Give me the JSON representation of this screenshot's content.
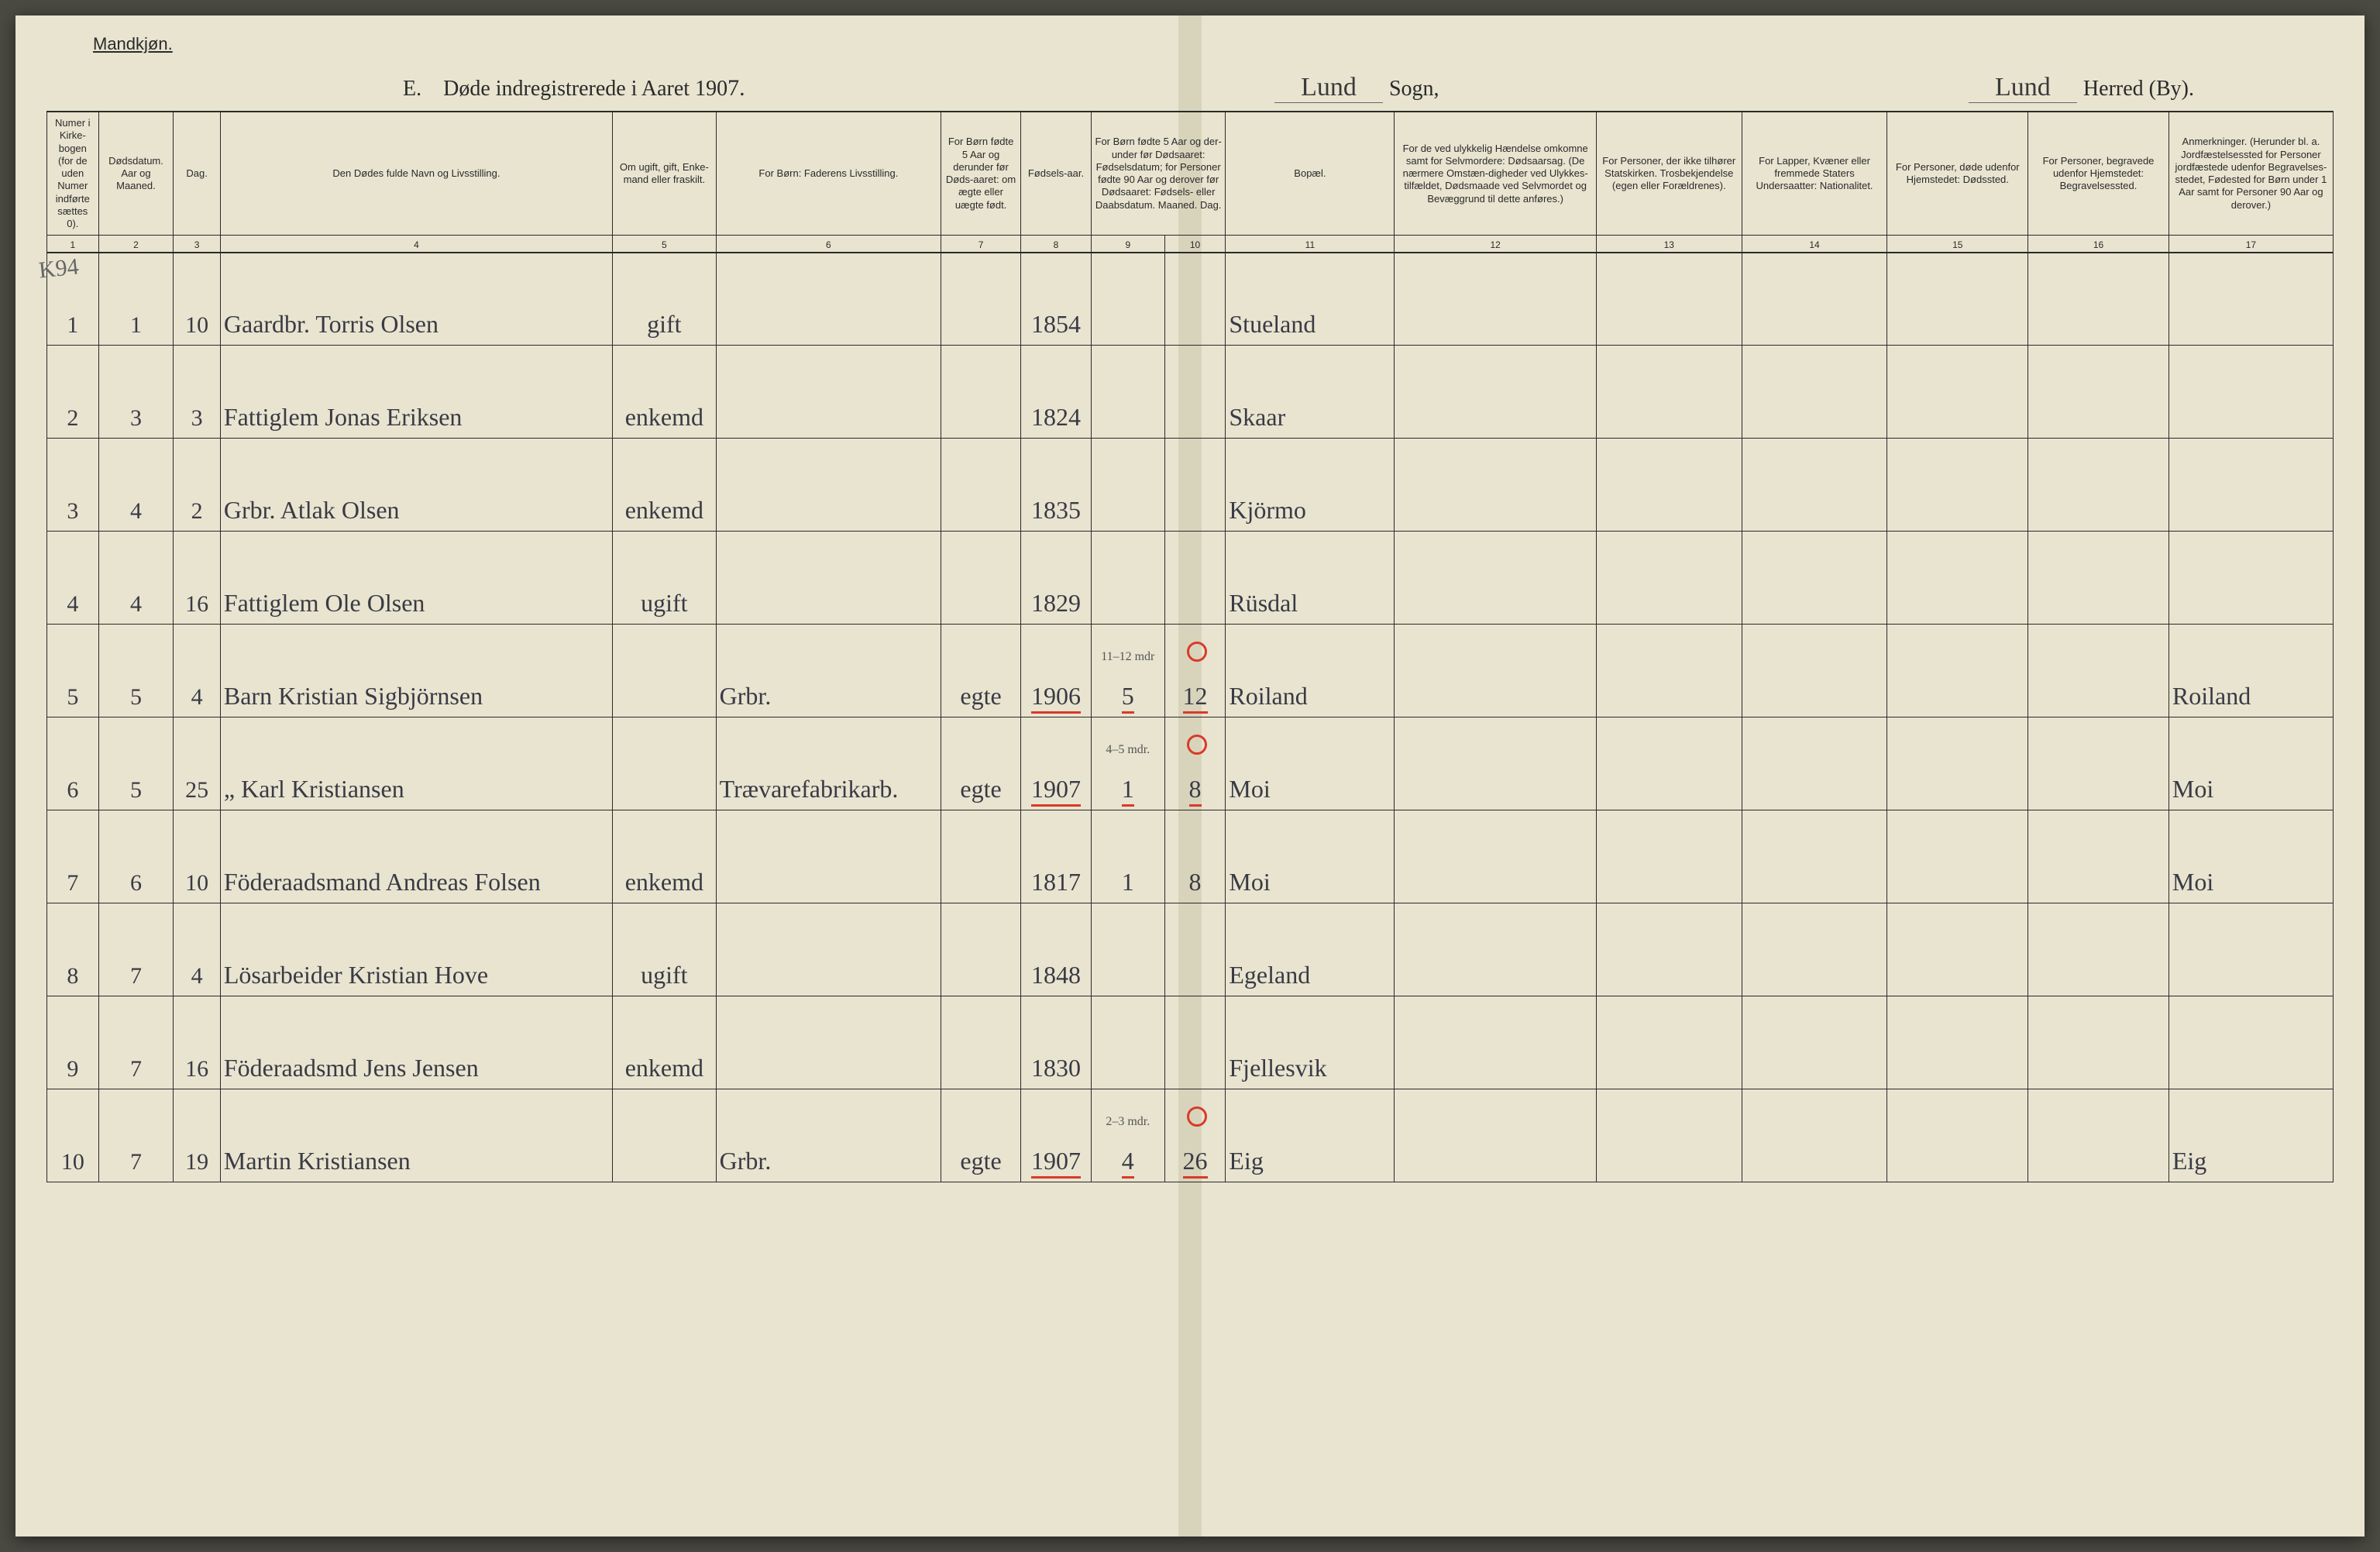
{
  "corner_label": "Mandkjøn.",
  "title": {
    "prefix": "E.",
    "text": "Døde indregistrerede i Aaret 190",
    "year_digit": "7.",
    "sogn_value": "Lund",
    "sogn_label": "Sogn,",
    "herred_value": "Lund",
    "herred_label": "Herred (By)."
  },
  "margin_note": "K94",
  "columns": {
    "c1": "Numer i Kirke-bogen (for de uden Numer indførte sættes 0).",
    "c2": "Dødsdatum.\nAar og Maaned.",
    "c3": "Dag.",
    "c4": "Den Dødes fulde Navn og Livsstilling.",
    "c5": "Om ugift, gift, Enke-mand eller fraskilt.",
    "c6": "For Børn:\nFaderens Livsstilling.",
    "c7": "For Børn fødte 5 Aar og derunder før Døds-aaret: om ægte eller uægte født.",
    "c8": "Fødsels-aar.",
    "c9_10": "For Børn fødte 5 Aar og der-under før Dødsaaret: Fødselsdatum; for Personer fødte 90 Aar og derover før Dødsaaret: Fødsels- eller Daabsdatum.\nMaaned. Dag.",
    "c11": "Bopæl.",
    "c12": "For de ved ulykkelig Hændelse omkomne samt for Selvmordere: Dødsaarsag. (De nærmere Omstæn-digheder ved Ulykkes-tilfældet, Dødsmaade ved Selvmordet og Bevæggrund til dette anføres.)",
    "c13": "For Personer, der ikke tilhører Statskirken. Trosbekjendelse (egen eller Forældrenes).",
    "c14": "For Lapper, Kvæner eller fremmede Staters Undersaatter: Nationalitet.",
    "c15": "For Personer, døde udenfor Hjemstedet: Dødssted.",
    "c16": "For Personer, begravede udenfor Hjemstedet: Begravelsessted.",
    "c17": "Anmerkninger. (Herunder bl. a. Jordfæstelsessted for Personer jordfæstede udenfor Begravelses-stedet, Fødested for Børn under 1 Aar samt for Personer 90 Aar og derover.)"
  },
  "colnums": [
    "1",
    "2",
    "3",
    "4",
    "5",
    "6",
    "7",
    "8",
    "9",
    "10",
    "11",
    "12",
    "13",
    "14",
    "15",
    "16",
    "17"
  ],
  "colors": {
    "paper": "#e8e4d0",
    "rule": "#2a2a2a",
    "ink_script": "#3a3a44",
    "red_mark": "#d93a2a"
  },
  "rows": [
    {
      "n": "1",
      "mo": "1",
      "day": "10",
      "name": "Gaardbr. Torris Olsen",
      "status": "gift",
      "father": "",
      "legit": "",
      "byear": "1854",
      "bmo": "",
      "bday": "",
      "place": "Stueland",
      "col12": "",
      "col13": "",
      "col14": "",
      "col15": "",
      "col16": "",
      "col17": "",
      "red": false,
      "circle": false,
      "note": ""
    },
    {
      "n": "2",
      "mo": "3",
      "day": "3",
      "name": "Fattiglem Jonas Eriksen",
      "status": "enkemd",
      "father": "",
      "legit": "",
      "byear": "1824",
      "bmo": "",
      "bday": "",
      "place": "Skaar",
      "col12": "",
      "col13": "",
      "col14": "",
      "col15": "",
      "col16": "",
      "col17": "",
      "red": false,
      "circle": false,
      "note": ""
    },
    {
      "n": "3",
      "mo": "4",
      "day": "2",
      "name": "Grbr. Atlak Olsen",
      "status": "enkemd",
      "father": "",
      "legit": "",
      "byear": "1835",
      "bmo": "",
      "bday": "",
      "place": "Kjörmo",
      "col12": "",
      "col13": "",
      "col14": "",
      "col15": "",
      "col16": "",
      "col17": "",
      "red": false,
      "circle": false,
      "note": ""
    },
    {
      "n": "4",
      "mo": "4",
      "day": "16",
      "name": "Fattiglem Ole Olsen",
      "status": "ugift",
      "father": "",
      "legit": "",
      "byear": "1829",
      "bmo": "",
      "bday": "",
      "place": "Rüsdal",
      "col12": "",
      "col13": "",
      "col14": "",
      "col15": "",
      "col16": "",
      "col17": "",
      "red": false,
      "circle": false,
      "note": ""
    },
    {
      "n": "5",
      "mo": "5",
      "day": "4",
      "name": "Barn Kristian Sigbjörnsen",
      "status": "",
      "father": "Grbr.",
      "legit": "egte",
      "byear": "1906",
      "bmo": "5",
      "bday": "12",
      "place": "Roiland",
      "col12": "",
      "col13": "",
      "col14": "",
      "col15": "",
      "col16": "",
      "col17": "Roiland",
      "red": true,
      "circle": true,
      "note": "11–12 mdr"
    },
    {
      "n": "6",
      "mo": "5",
      "day": "25",
      "name": "„ Karl Kristiansen",
      "status": "",
      "father": "Trævarefabrikarb.",
      "legit": "egte",
      "byear": "1907",
      "bmo": "1",
      "bday": "8",
      "place": "Moi",
      "col12": "",
      "col13": "",
      "col14": "",
      "col15": "",
      "col16": "",
      "col17": "Moi",
      "red": true,
      "circle": true,
      "note": "4–5 mdr."
    },
    {
      "n": "7",
      "mo": "6",
      "day": "10",
      "name": "Föderaadsmand Andreas Folsen",
      "status": "enkemd",
      "father": "",
      "legit": "",
      "byear": "1817",
      "bmo": "1",
      "bday": "8",
      "place": "Moi",
      "col12": "",
      "col13": "",
      "col14": "",
      "col15": "",
      "col16": "",
      "col17": "Moi",
      "red": false,
      "circle": false,
      "note": ""
    },
    {
      "n": "8",
      "mo": "7",
      "day": "4",
      "name": "Lösarbeider Kristian Hove",
      "status": "ugift",
      "father": "",
      "legit": "",
      "byear": "1848",
      "bmo": "",
      "bday": "",
      "place": "Egeland",
      "col12": "",
      "col13": "",
      "col14": "",
      "col15": "",
      "col16": "",
      "col17": "",
      "red": false,
      "circle": false,
      "note": ""
    },
    {
      "n": "9",
      "mo": "7",
      "day": "16",
      "name": "Föderaadsmd Jens Jensen",
      "status": "enkemd",
      "father": "",
      "legit": "",
      "byear": "1830",
      "bmo": "",
      "bday": "",
      "place": "Fjellesvik",
      "col12": "",
      "col13": "",
      "col14": "",
      "col15": "",
      "col16": "",
      "col17": "",
      "red": false,
      "circle": false,
      "note": ""
    },
    {
      "n": "10",
      "mo": "7",
      "day": "19",
      "name": "Martin Kristiansen",
      "status": "",
      "father": "Grbr.",
      "legit": "egte",
      "byear": "1907",
      "bmo": "4",
      "bday": "26",
      "place": "Eig",
      "col12": "",
      "col13": "",
      "col14": "",
      "col15": "",
      "col16": "",
      "col17": "Eig",
      "red": true,
      "circle": true,
      "note": "2–3 mdr."
    }
  ]
}
